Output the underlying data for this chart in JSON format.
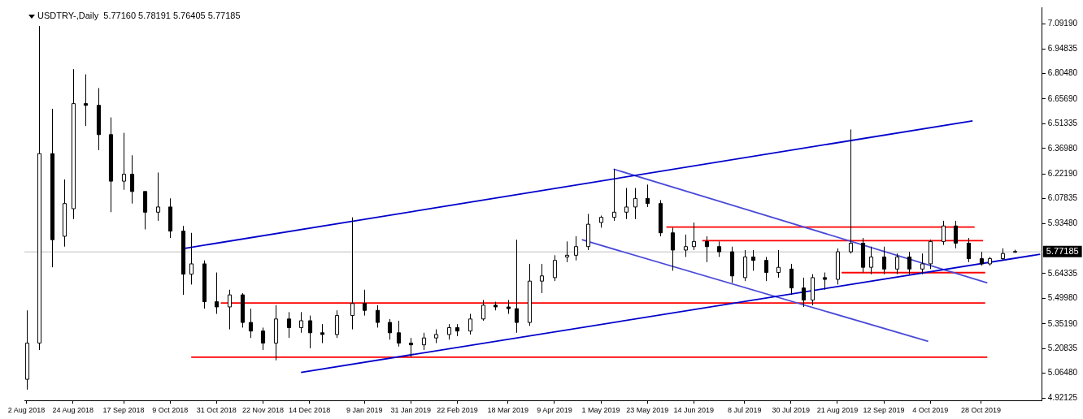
{
  "chart_data": {
    "type": "candlestick",
    "title": "USDTRY-,Daily  5.77160 5.78191 5.76405 5.77185",
    "x": [
      "2018-08-02",
      "2018-08-08",
      "2018-08-14",
      "2018-08-20",
      "2018-08-24",
      "2018-08-30",
      "2018-09-05",
      "2018-09-11",
      "2018-09-17",
      "2018-09-21",
      "2018-09-27",
      "2018-10-03",
      "2018-10-09",
      "2018-10-15",
      "2018-10-19",
      "2018-10-25",
      "2018-10-31",
      "2018-11-06",
      "2018-11-12",
      "2018-11-16",
      "2018-11-22",
      "2018-11-28",
      "2018-12-04",
      "2018-12-10",
      "2018-12-14",
      "2018-12-20",
      "2018-12-27",
      "2019-01-03",
      "2019-01-09",
      "2019-01-15",
      "2019-01-21",
      "2019-01-25",
      "2019-01-31",
      "2019-02-06",
      "2019-02-12",
      "2019-02-18",
      "2019-02-22",
      "2019-02-28",
      "2019-03-06",
      "2019-03-12",
      "2019-03-18",
      "2019-03-22",
      "2019-03-28",
      "2019-04-03",
      "2019-04-09",
      "2019-04-15",
      "2019-04-19",
      "2019-04-25",
      "2019-05-01",
      "2019-05-07",
      "2019-05-13",
      "2019-05-17",
      "2019-05-23",
      "2019-05-29",
      "2019-06-04",
      "2019-06-10",
      "2019-06-14",
      "2019-06-20",
      "2019-06-26",
      "2019-07-02",
      "2019-07-08",
      "2019-07-12",
      "2019-07-18",
      "2019-07-24",
      "2019-07-30",
      "2019-08-05",
      "2019-08-09",
      "2019-08-15",
      "2019-08-21",
      "2019-08-27",
      "2019-09-02",
      "2019-09-06",
      "2019-09-12",
      "2019-09-18",
      "2019-09-24",
      "2019-09-30",
      "2019-10-04",
      "2019-10-10",
      "2019-10-16",
      "2019-10-22",
      "2019-10-28",
      "2019-11-01",
      "2019-11-07",
      "2019-11-13"
    ],
    "ohlc": [
      [
        5.03,
        5.43,
        4.97,
        5.24
      ],
      [
        5.24,
        7.08,
        5.2,
        6.34
      ],
      [
        6.34,
        6.6,
        5.68,
        5.84
      ],
      [
        5.86,
        6.19,
        5.8,
        6.05
      ],
      [
        6.02,
        6.83,
        5.96,
        6.63
      ],
      [
        6.63,
        6.8,
        6.5,
        6.62
      ],
      [
        6.62,
        6.72,
        6.36,
        6.45
      ],
      [
        6.45,
        6.55,
        6.0,
        6.18
      ],
      [
        6.18,
        6.46,
        6.13,
        6.22
      ],
      [
        6.22,
        6.33,
        6.05,
        6.12
      ],
      [
        6.12,
        6.12,
        5.9,
        6.0
      ],
      [
        6.0,
        6.23,
        5.95,
        6.03
      ],
      [
        6.03,
        6.08,
        5.85,
        5.89
      ],
      [
        5.89,
        5.92,
        5.52,
        5.64
      ],
      [
        5.64,
        5.88,
        5.58,
        5.7
      ],
      [
        5.7,
        5.72,
        5.44,
        5.48
      ],
      [
        5.48,
        5.65,
        5.41,
        5.45
      ],
      [
        5.45,
        5.55,
        5.32,
        5.52
      ],
      [
        5.52,
        5.53,
        5.33,
        5.36
      ],
      [
        5.36,
        5.44,
        5.27,
        5.31
      ],
      [
        5.31,
        5.33,
        5.2,
        5.24
      ],
      [
        5.24,
        5.46,
        5.14,
        5.38
      ],
      [
        5.38,
        5.42,
        5.27,
        5.33
      ],
      [
        5.33,
        5.42,
        5.3,
        5.37
      ],
      [
        5.37,
        5.4,
        5.21,
        5.3
      ],
      [
        5.3,
        5.35,
        5.24,
        5.29
      ],
      [
        5.29,
        5.43,
        5.27,
        5.4
      ],
      [
        5.4,
        5.97,
        5.32,
        5.47
      ],
      [
        5.47,
        5.55,
        5.4,
        5.43
      ],
      [
        5.43,
        5.46,
        5.33,
        5.36
      ],
      [
        5.36,
        5.38,
        5.26,
        5.3
      ],
      [
        5.3,
        5.37,
        5.22,
        5.24
      ],
      [
        5.24,
        5.27,
        5.16,
        5.23
      ],
      [
        5.23,
        5.3,
        5.2,
        5.27
      ],
      [
        5.27,
        5.32,
        5.24,
        5.29
      ],
      [
        5.29,
        5.35,
        5.26,
        5.33
      ],
      [
        5.33,
        5.35,
        5.28,
        5.31
      ],
      [
        5.31,
        5.41,
        5.29,
        5.38
      ],
      [
        5.38,
        5.49,
        5.37,
        5.46
      ],
      [
        5.46,
        5.48,
        5.43,
        5.45
      ],
      [
        5.45,
        5.49,
        5.41,
        5.44
      ],
      [
        5.44,
        5.84,
        5.3,
        5.36
      ],
      [
        5.36,
        5.7,
        5.34,
        5.6
      ],
      [
        5.6,
        5.7,
        5.53,
        5.63
      ],
      [
        5.62,
        5.75,
        5.6,
        5.72
      ],
      [
        5.74,
        5.83,
        5.71,
        5.75
      ],
      [
        5.75,
        5.86,
        5.72,
        5.8
      ],
      [
        5.8,
        5.99,
        5.78,
        5.93
      ],
      [
        5.94,
        5.98,
        5.91,
        5.97
      ],
      [
        5.97,
        6.25,
        5.95,
        6.0
      ],
      [
        6.0,
        6.14,
        5.96,
        6.03
      ],
      [
        6.03,
        6.14,
        5.96,
        6.08
      ],
      [
        6.08,
        6.16,
        6.03,
        6.05
      ],
      [
        6.05,
        6.07,
        5.86,
        5.88
      ],
      [
        5.88,
        5.91,
        5.66,
        5.78
      ],
      [
        5.78,
        5.87,
        5.74,
        5.8
      ],
      [
        5.8,
        5.94,
        5.78,
        5.83
      ],
      [
        5.83,
        5.86,
        5.71,
        5.8
      ],
      [
        5.8,
        5.83,
        5.74,
        5.77
      ],
      [
        5.77,
        5.8,
        5.59,
        5.63
      ],
      [
        5.62,
        5.78,
        5.6,
        5.74
      ],
      [
        5.74,
        5.78,
        5.66,
        5.72
      ],
      [
        5.72,
        5.74,
        5.6,
        5.65
      ],
      [
        5.65,
        5.78,
        5.62,
        5.68
      ],
      [
        5.67,
        5.7,
        5.52,
        5.56
      ],
      [
        5.56,
        5.62,
        5.45,
        5.49
      ],
      [
        5.49,
        5.64,
        5.46,
        5.62
      ],
      [
        5.62,
        5.65,
        5.55,
        5.61
      ],
      [
        5.61,
        5.79,
        5.58,
        5.77
      ],
      [
        5.77,
        6.48,
        5.76,
        5.82
      ],
      [
        5.82,
        5.85,
        5.65,
        5.68
      ],
      [
        5.68,
        5.8,
        5.64,
        5.74
      ],
      [
        5.74,
        5.8,
        5.64,
        5.67
      ],
      [
        5.67,
        5.76,
        5.64,
        5.74
      ],
      [
        5.74,
        5.77,
        5.64,
        5.67
      ],
      [
        5.67,
        5.76,
        5.64,
        5.7
      ],
      [
        5.7,
        5.84,
        5.67,
        5.83
      ],
      [
        5.83,
        5.95,
        5.81,
        5.92
      ],
      [
        5.92,
        5.95,
        5.79,
        5.82
      ],
      [
        5.82,
        5.85,
        5.71,
        5.73
      ],
      [
        5.73,
        5.77,
        5.69,
        5.7
      ],
      [
        5.7,
        5.74,
        5.69,
        5.73
      ],
      [
        5.73,
        5.79,
        5.72,
        5.76
      ],
      [
        5.7716,
        5.78191,
        5.76405,
        5.77185
      ]
    ],
    "series": [
      {
        "type": "line",
        "color": "#0000cc",
        "x": [
          "2018-10-16",
          "2019-10-24"
        ],
        "values": [
          5.79,
          6.53
        ]
      },
      {
        "type": "line",
        "color": "#0000cc",
        "x": [
          "2018-12-10",
          "2019-11-25"
        ],
        "values": [
          5.07,
          5.756
        ]
      },
      {
        "type": "line",
        "color": "#4a4ad8",
        "x": [
          "2019-05-07",
          "2019-10-31"
        ],
        "values": [
          6.25,
          5.59
        ]
      },
      {
        "type": "line",
        "color": "#4a4ad8",
        "x": [
          "2019-04-22",
          "2019-10-03"
        ],
        "values": [
          5.84,
          5.25
        ]
      },
      {
        "type": "line",
        "color": "#ff0000",
        "x": [
          "2018-10-19",
          "2019-10-31"
        ],
        "values": [
          5.158,
          5.158
        ]
      },
      {
        "type": "line",
        "color": "#ff0000",
        "x": [
          "2018-11-02",
          "2019-10-30"
        ],
        "values": [
          5.473,
          5.473
        ]
      },
      {
        "type": "line",
        "color": "#ff0000",
        "x": [
          "2019-06-01",
          "2019-10-25"
        ],
        "values": [
          5.914,
          5.914
        ]
      },
      {
        "type": "line",
        "color": "#ff0000",
        "x": [
          "2019-06-18",
          "2019-10-29"
        ],
        "values": [
          5.835,
          5.835
        ]
      },
      {
        "type": "line",
        "color": "#ff0000",
        "x": [
          "2019-08-23",
          "2019-10-30"
        ],
        "values": [
          5.649,
          5.649
        ]
      }
    ],
    "xlim": [
      "2018-08-01",
      "2019-11-26"
    ],
    "xticks": [
      {
        "value": "2018-08-02",
        "label": "2 Aug 2018"
      },
      {
        "value": "2018-08-24",
        "label": "24 Aug 2018"
      },
      {
        "value": "2018-09-17",
        "label": "17 Sep 2018"
      },
      {
        "value": "2018-10-09",
        "label": "9 Oct 2018"
      },
      {
        "value": "2018-10-31",
        "label": "31 Oct 2018"
      },
      {
        "value": "2018-11-22",
        "label": "22 Nov 2018"
      },
      {
        "value": "2018-12-14",
        "label": "14 Dec 2018"
      },
      {
        "value": "2019-01-09",
        "label": "9 Jan 2019"
      },
      {
        "value": "2019-01-31",
        "label": "31 Jan 2019"
      },
      {
        "value": "2019-02-22",
        "label": "22 Feb 2019"
      },
      {
        "value": "2019-03-18",
        "label": "18 Mar 2019"
      },
      {
        "value": "2019-04-09",
        "label": "9 Apr 2019"
      },
      {
        "value": "2019-05-01",
        "label": "1 May 2019"
      },
      {
        "value": "2019-05-23",
        "label": "23 May 2019"
      },
      {
        "value": "2019-06-14",
        "label": "14 Jun 2019"
      },
      {
        "value": "2019-07-08",
        "label": "8 Jul 2019"
      },
      {
        "value": "2019-07-30",
        "label": "30 Jul 2019"
      },
      {
        "value": "2019-08-21",
        "label": "21 Aug 2019"
      },
      {
        "value": "2019-09-12",
        "label": "12 Sep 2019"
      },
      {
        "value": "2019-10-04",
        "label": "4 Oct 2019"
      },
      {
        "value": "2019-10-28",
        "label": "28 Oct 2019"
      }
    ],
    "ylim": [
      4.907,
      7.189
    ],
    "yticks": [
      {
        "value": 7.0919,
        "label": "7.09190"
      },
      6.94835,
      {
        "value": 6.8048,
        "label": "6.80480"
      },
      {
        "value": 6.6569,
        "label": "6.65690"
      },
      6.51335,
      {
        "value": 6.3698,
        "label": "6.36980"
      },
      {
        "value": 6.2219,
        "label": "6.22190"
      },
      6.07835,
      {
        "value": 5.9348,
        "label": "5.93480"
      },
      5.64335,
      {
        "value": 5.4998,
        "label": "5.49980"
      },
      {
        "value": 5.3519,
        "label": "5.35190"
      },
      5.20835,
      {
        "value": 5.0648,
        "label": "5.06480"
      },
      4.92125
    ],
    "ref_lines": [
      {
        "axis": "y",
        "value": 5.77185,
        "label": "5.77185",
        "color": "#c0c0c0"
      }
    ],
    "marker": "none",
    "line_style": "solid"
  }
}
